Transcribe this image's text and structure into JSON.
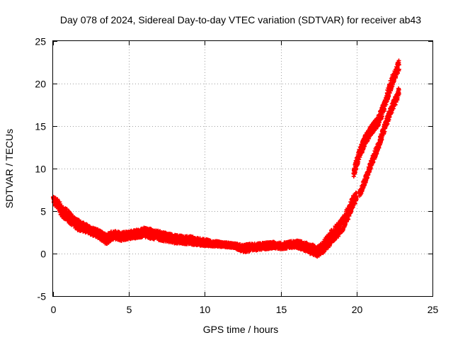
{
  "chart_data": {
    "type": "scatter",
    "title": "Day 078 of 2024, Sidereal Day-to-day VTEC variation (SDTVAR) for receiver ab43",
    "xlabel": "GPS time / hours",
    "ylabel": "SDTVAR / TECUs",
    "xlim": [
      0,
      25
    ],
    "ylim": [
      -5,
      25
    ],
    "xticks": [
      0,
      5,
      10,
      15,
      20,
      25
    ],
    "yticks": [
      -5,
      0,
      5,
      10,
      15,
      20,
      25
    ],
    "grid": true,
    "marker": "+",
    "series_color": "#ff0000",
    "series": [
      {
        "name": "SDTVAR",
        "bands": [
          {
            "x": [
              0.0,
              0.3,
              0.6,
              1.0,
              1.5,
              2.0,
              2.5,
              3.0,
              3.5,
              4.0,
              4.5,
              5.0,
              5.5,
              6.0,
              6.5,
              7.0,
              7.5,
              8.0,
              8.5,
              9.0,
              9.5,
              10.0,
              10.5,
              11.0,
              11.5,
              12.0,
              12.5,
              13.0,
              13.5,
              14.0,
              14.5,
              15.0,
              15.5,
              16.0,
              16.5,
              17.0,
              17.5,
              18.0,
              18.5,
              19.0,
              19.5,
              19.8,
              20.0
            ],
            "y": [
              6.3,
              5.8,
              5.0,
              4.4,
              3.5,
              3.1,
              2.7,
              2.3,
              1.7,
              2.2,
              2.0,
              2.2,
              2.3,
              2.5,
              2.3,
              2.1,
              1.9,
              1.7,
              1.6,
              1.6,
              1.4,
              1.3,
              1.2,
              1.1,
              1.0,
              0.9,
              0.6,
              0.7,
              0.8,
              0.9,
              1.0,
              0.9,
              1.0,
              1.1,
              0.9,
              0.5,
              0.2,
              1.2,
              2.3,
              3.2,
              5.0,
              6.2,
              6.8
            ],
            "spread": [
              0.9,
              1.2,
              1.4,
              1.4,
              1.3,
              1.1,
              1.0,
              1.0,
              1.2,
              1.1,
              1.0,
              1.0,
              1.0,
              1.1,
              1.2,
              1.1,
              1.0,
              1.0,
              1.0,
              1.0,
              0.9,
              0.8,
              0.7,
              0.6,
              0.6,
              0.6,
              0.9,
              0.9,
              0.8,
              0.8,
              0.8,
              0.8,
              0.8,
              0.9,
              1.0,
              1.2,
              1.3,
              1.5,
              1.7,
              1.7,
              1.6,
              1.4,
              1.3
            ]
          },
          {
            "x": [
              19.8,
              20.2,
              20.6,
              21.0,
              21.4,
              21.8,
              22.2,
              22.5,
              22.8
            ],
            "y": [
              9.5,
              11.8,
              13.5,
              14.6,
              15.5,
              17.2,
              19.6,
              21.0,
              22.2
            ],
            "spread": [
              1.2,
              1.3,
              1.2,
              1.1,
              1.2,
              1.3,
              1.4,
              1.3,
              1.3
            ]
          },
          {
            "x": [
              20.2,
              20.6,
              21.0,
              21.4,
              21.8,
              22.2,
              22.5,
              22.8
            ],
            "y": [
              7.0,
              8.8,
              10.8,
              12.5,
              14.6,
              16.6,
              17.8,
              19.0
            ],
            "spread": [
              0.8,
              0.9,
              0.9,
              1.0,
              1.0,
              1.1,
              1.1,
              1.2
            ]
          }
        ]
      }
    ]
  }
}
